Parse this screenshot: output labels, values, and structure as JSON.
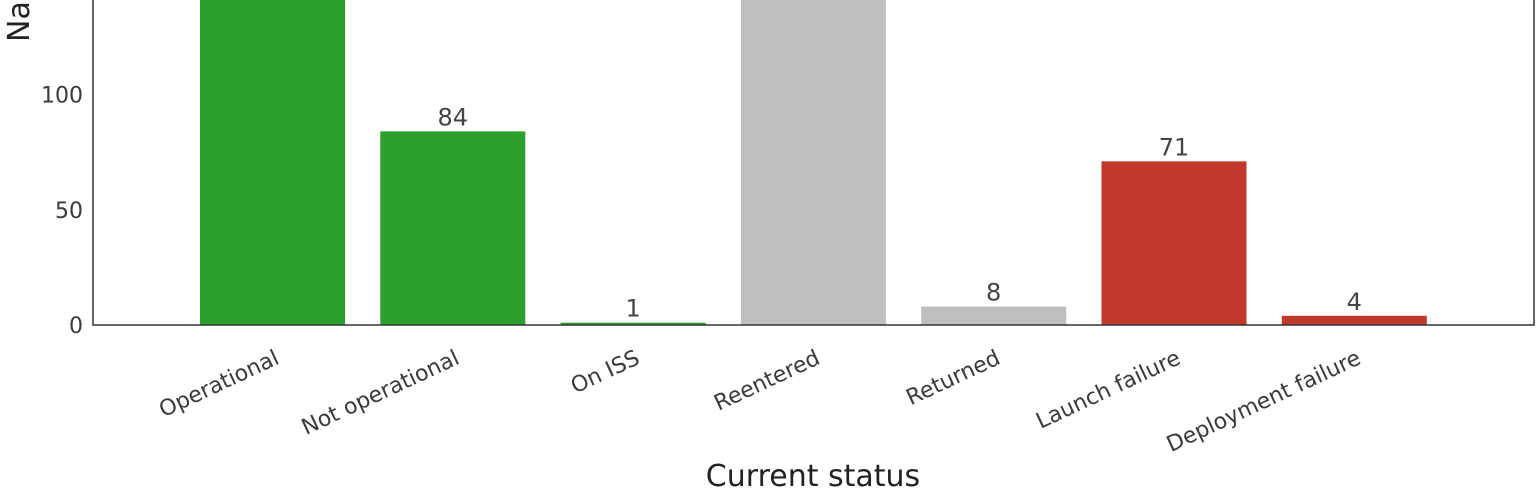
{
  "chart_data": {
    "type": "bar",
    "categories": [
      "Operational",
      "Not operational",
      "On ISS",
      "Reentered",
      "Returned",
      "Launch failure",
      "Deployment failure"
    ],
    "values": [
      145,
      84,
      1,
      145,
      8,
      71,
      4
    ],
    "data_labels": [
      "",
      "84",
      "1",
      "",
      "8",
      "71",
      "4"
    ],
    "bar_colors": [
      "#2ca02c",
      "#2ca02c",
      "#2ca02c",
      "#bfbfbf",
      "#bfbfbf",
      "#c0392b",
      "#c0392b"
    ],
    "xlabel": "Current status",
    "ylabel": "Na",
    "yticks": [
      0,
      50,
      100
    ],
    "ylim": [
      0,
      141
    ],
    "grid": false
  }
}
